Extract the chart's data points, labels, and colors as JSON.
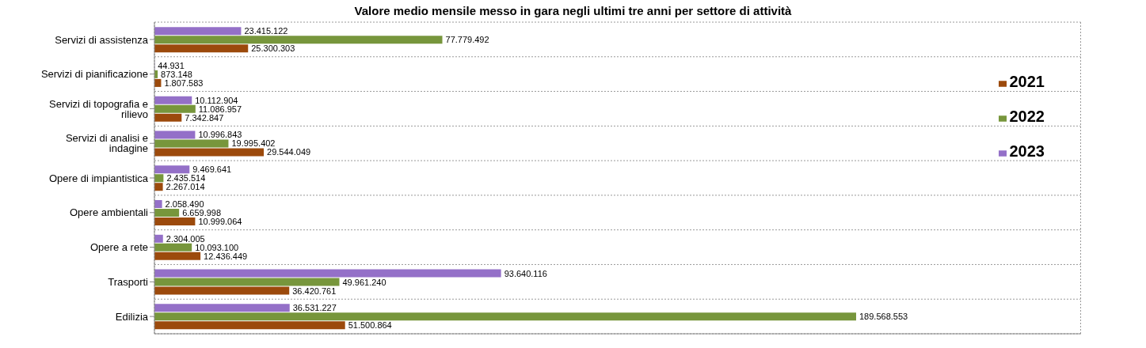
{
  "chart_data": {
    "type": "bar",
    "orientation": "horizontal",
    "title": "Valore medio mensile messo in gara negli ultimi tre anni per settore di attività",
    "categories": [
      "Servizi di assistenza",
      "Servizi di pianificazione",
      "Servizi di topografia e rilievo",
      "Servizi di analisi e indagine",
      "Opere di impiantistica",
      "Opere ambientali",
      "Opere a rete",
      "Trasporti",
      "Edilizia"
    ],
    "series": [
      {
        "name": "2023",
        "color": "#9470c8",
        "values": [
          23415122,
          44931,
          10112904,
          10996843,
          9469641,
          2058490,
          2304005,
          93640116,
          36531227
        ],
        "value_labels": [
          "23.415.122",
          "44.931",
          "10.112.904",
          "10.996.843",
          "9.469.641",
          "2.058.490",
          "2.304.005",
          "93.640.116",
          "36.531.227"
        ]
      },
      {
        "name": "2022",
        "color": "#77963c",
        "values": [
          77779492,
          873148,
          11086957,
          19995402,
          2435514,
          6659998,
          10093100,
          49961240,
          189568553
        ],
        "value_labels": [
          "77.779.492",
          "873.148",
          "11.086.957",
          "19.995.402",
          "2.435.514",
          "6.659.998",
          "10.093.100",
          "49.961.240",
          "189.568.553"
        ]
      },
      {
        "name": "2021",
        "color": "#9c4a0c",
        "values": [
          25300303,
          1807583,
          7342847,
          29544049,
          2267014,
          10999064,
          12436449,
          36420761,
          51500864
        ],
        "value_labels": [
          "25.300.303",
          "1.807.583",
          "7.342.847",
          "29.544.049",
          "2.267.014",
          "10.999.064",
          "12.436.449",
          "36.420.761",
          "51.500.864"
        ]
      }
    ],
    "tick_labels": "y",
    "grid": true,
    "legend": "right"
  }
}
